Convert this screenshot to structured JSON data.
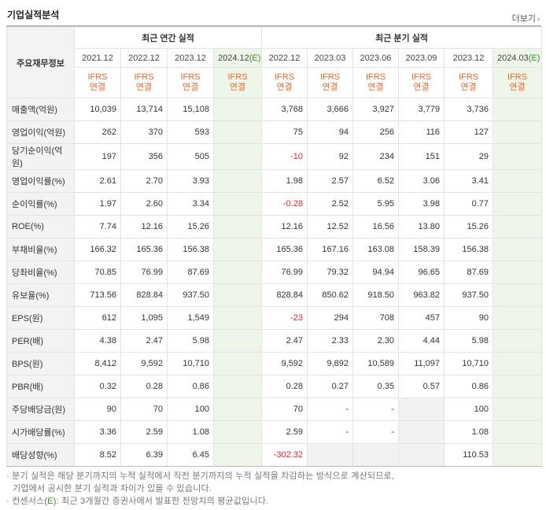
{
  "title": "기업실적분석",
  "more_label": "더보기",
  "row_header": "주요재무정보",
  "groups": {
    "annual": "최근 연간 실적",
    "quarter": "최근 분기 실적"
  },
  "periods": [
    {
      "base": "2021.12",
      "suffix": ""
    },
    {
      "base": "2022.12",
      "suffix": ""
    },
    {
      "base": "2023.12",
      "suffix": ""
    },
    {
      "base": "2024.12",
      "suffix": "(E)"
    },
    {
      "base": "2022.12",
      "suffix": ""
    },
    {
      "base": "2023.03",
      "suffix": ""
    },
    {
      "base": "2023.06",
      "suffix": ""
    },
    {
      "base": "2023.09",
      "suffix": ""
    },
    {
      "base": "2023.12",
      "suffix": ""
    },
    {
      "base": "2024.03",
      "suffix": "(E)"
    }
  ],
  "basis": {
    "line1": "IFRS",
    "line2": "연결"
  },
  "rows": [
    {
      "label": "매출액(억원)",
      "values": [
        "10,039",
        "13,714",
        "15,108",
        "",
        "3,768",
        "3,666",
        "3,927",
        "3,779",
        "3,736",
        ""
      ]
    },
    {
      "label": "영업이익(억원)",
      "values": [
        "262",
        "370",
        "593",
        "",
        "75",
        "94",
        "256",
        "116",
        "127",
        ""
      ]
    },
    {
      "label": "당기순이익(억원)",
      "values": [
        "197",
        "356",
        "505",
        "",
        "-10",
        "92",
        "234",
        "151",
        "29",
        ""
      ]
    },
    {
      "label": "영업이익률(%)",
      "values": [
        "2.61",
        "2.70",
        "3.93",
        "",
        "1.98",
        "2.57",
        "6.52",
        "3.06",
        "3.41",
        ""
      ]
    },
    {
      "label": "순이익률(%)",
      "values": [
        "1.97",
        "2.60",
        "3.34",
        "",
        "-0.28",
        "2.52",
        "5.95",
        "3.98",
        "0.77",
        ""
      ]
    },
    {
      "label": "ROE(%)",
      "values": [
        "7.74",
        "12.16",
        "15.26",
        "",
        "12.16",
        "12.52",
        "16.56",
        "13.80",
        "15.26",
        ""
      ]
    },
    {
      "label": "부채비율(%)",
      "values": [
        "166.32",
        "165.36",
        "156.38",
        "",
        "165.36",
        "167.16",
        "163.08",
        "158.39",
        "156.38",
        ""
      ]
    },
    {
      "label": "당좌비율(%)",
      "values": [
        "70.85",
        "76.99",
        "87.69",
        "",
        "76.99",
        "79.32",
        "94.94",
        "96.65",
        "87.69",
        ""
      ]
    },
    {
      "label": "유보율(%)",
      "values": [
        "713.56",
        "828.84",
        "937.50",
        "",
        "828.84",
        "850.62",
        "918.50",
        "963.82",
        "937.50",
        ""
      ]
    },
    {
      "label": "EPS(원)",
      "values": [
        "612",
        "1,095",
        "1,549",
        "",
        "-23",
        "294",
        "708",
        "457",
        "90",
        ""
      ]
    },
    {
      "label": "PER(배)",
      "values": [
        "4.38",
        "2.47",
        "5.98",
        "",
        "2.47",
        "2.33",
        "2.30",
        "4.44",
        "5.98",
        ""
      ]
    },
    {
      "label": "BPS(원)",
      "values": [
        "8,412",
        "9,592",
        "10,710",
        "",
        "9,592",
        "9,892",
        "10,589",
        "11,097",
        "10,710",
        ""
      ]
    },
    {
      "label": "PBR(배)",
      "values": [
        "0.32",
        "0.28",
        "0.86",
        "",
        "0.28",
        "0.27",
        "0.35",
        "0.57",
        "0.86",
        ""
      ]
    },
    {
      "label": "주당배당금(원)",
      "values": [
        "90",
        "70",
        "100",
        "",
        "70",
        "-",
        "-",
        "",
        "100",
        ""
      ]
    },
    {
      "label": "시가배당률(%)",
      "values": [
        "3.36",
        "2.59",
        "1.08",
        "",
        "2.59",
        "-",
        "-",
        "",
        "1.08",
        ""
      ]
    },
    {
      "label": "배당성향(%)",
      "values": [
        "8.52",
        "6.39",
        "6.45",
        "",
        "-302.32",
        "",
        "",
        "",
        "110.53",
        ""
      ]
    }
  ],
  "notes": {
    "line1": "분기 실적은 해당 분기까지의 누적 실적에서 직전 분기까지의 누적 실적을 차감하는 방식으로 계산되므로,",
    "line2": "기업에서 공시한 분기 실적과 차이가 있을 수 있습니다.",
    "line3_pre": "컨센서스",
    "line3_tag": "(E)",
    "line3_post": ": 최근 3개월간 증권사에서 발표한 전망치의 평균값입니다."
  },
  "colors": {
    "basis": "#e8692b",
    "negative": "#e8262b",
    "estimate_bg": "#edf6e8",
    "estimate_tag": "#3a8a2f"
  }
}
